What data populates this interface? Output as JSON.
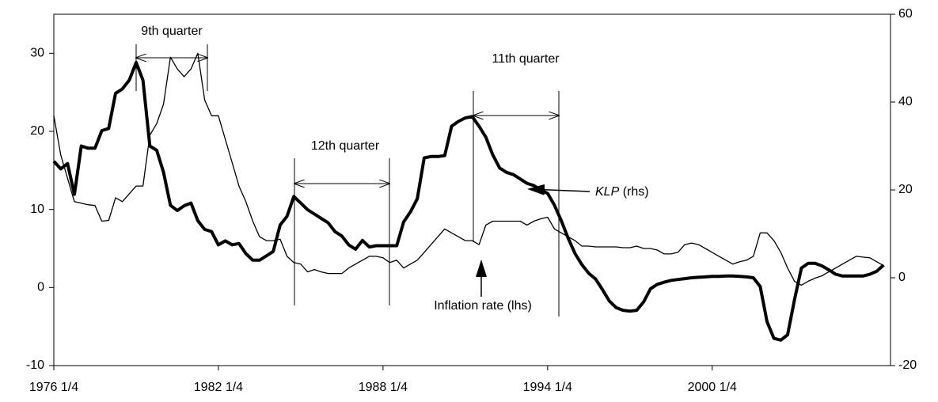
{
  "chart_data": {
    "type": "line",
    "x": [
      1976,
      1976.25,
      1976.5,
      1976.75,
      1977,
      1977.25,
      1977.5,
      1977.75,
      1978,
      1978.25,
      1978.5,
      1978.75,
      1979,
      1979.25,
      1979.5,
      1979.75,
      1980,
      1980.25,
      1980.5,
      1980.75,
      1981,
      1981.25,
      1981.5,
      1981.75,
      1982,
      1982.25,
      1982.5,
      1982.75,
      1983,
      1983.25,
      1983.5,
      1983.75,
      1984,
      1984.25,
      1984.5,
      1984.75,
      1985,
      1985.25,
      1985.5,
      1985.75,
      1986,
      1986.25,
      1986.5,
      1986.75,
      1987,
      1987.25,
      1987.5,
      1987.75,
      1988,
      1988.25,
      1988.5,
      1988.75,
      1989,
      1989.25,
      1989.5,
      1989.75,
      1990,
      1990.25,
      1990.5,
      1990.75,
      1991,
      1991.25,
      1991.5,
      1991.75,
      1992,
      1992.25,
      1992.5,
      1992.75,
      1993,
      1993.25,
      1993.5,
      1993.75,
      1994,
      1994.25,
      1994.5,
      1994.75,
      1995,
      1995.25,
      1995.5,
      1995.75,
      1996,
      1996.25,
      1996.5,
      1996.75,
      1997,
      1997.25,
      1997.5,
      1997.75,
      1998,
      1998.25,
      1998.5,
      1998.75,
      1999,
      1999.25,
      1999.5,
      1999.75,
      2000,
      2000.25,
      2000.5,
      2000.75,
      2001,
      2001.25,
      2001.5,
      2001.75,
      2002,
      2002.25,
      2002.5,
      2002.75,
      2003,
      2003.25,
      2003.5,
      2003.75,
      2004,
      2004.25,
      2004.5,
      2004.75,
      2005,
      2005.25,
      2005.5,
      2005.75,
      2006,
      2006.25
    ],
    "series": [
      {
        "name": "Inflation rate (lhs)",
        "color": "#000000",
        "width": 1.3,
        "axis": "y",
        "values": [
          22,
          17,
          14,
          11,
          10.8,
          10.6,
          10.5,
          8.5,
          8.6,
          11.5,
          11,
          12,
          13,
          13,
          19.5,
          21,
          23.5,
          29.5,
          28,
          27,
          28,
          30,
          24,
          22,
          22,
          19,
          16,
          13,
          11,
          8.5,
          6.5,
          6,
          6,
          6.2,
          4,
          3.2,
          3,
          2,
          2.3,
          2,
          1.8,
          1.8,
          1.8,
          2.5,
          3,
          3.5,
          4,
          4,
          3.8,
          3.2,
          3.5,
          2.5,
          3,
          3.5,
          4.5,
          5.5,
          6.5,
          7.5,
          7,
          6.5,
          6,
          6,
          5.5,
          8,
          8.5,
          8.5,
          8.5,
          8.5,
          8.5,
          8,
          8.5,
          8.8,
          9,
          7.5,
          7,
          6.5,
          6,
          5.3,
          5.3,
          5.2,
          5.2,
          5.2,
          5.2,
          5.1,
          5.1,
          5.3,
          5,
          5,
          4.8,
          4.3,
          4.3,
          4.5,
          5.5,
          5.7,
          5.5,
          5,
          4.5,
          4,
          3.5,
          3,
          3.3,
          3.5,
          4,
          7,
          7,
          6,
          4.5,
          2.5,
          0.8,
          0.3,
          0.8,
          1.2,
          1.5,
          2,
          2.5,
          3,
          3.5,
          4,
          3.9,
          3.8,
          3.3,
          2.8
        ]
      },
      {
        "name": "KLP",
        "color": "#000000",
        "width": 4,
        "axis": "y2",
        "values": [
          26.5,
          24.8,
          26,
          19,
          30,
          29.5,
          29.5,
          33.5,
          34,
          42,
          43,
          45,
          49,
          45,
          30,
          29,
          24,
          16.5,
          15.3,
          16.4,
          17,
          13,
          11,
          10.5,
          7.5,
          8.4,
          7.5,
          7.8,
          5.5,
          4,
          4,
          5,
          6,
          12,
          14,
          18.5,
          17,
          15.5,
          14.5,
          13.5,
          12.5,
          10.5,
          9.5,
          7.5,
          6.5,
          8.5,
          7,
          7.3,
          7.3,
          7.3,
          7.3,
          12.7,
          15,
          18,
          27.3,
          27.6,
          27.6,
          27.8,
          34.5,
          35.6,
          36.4,
          36.7,
          34.5,
          32,
          28,
          25,
          24,
          23.5,
          22.5,
          21.5,
          21,
          20,
          19.2,
          16.5,
          13,
          9,
          5.5,
          3,
          1,
          -0.3,
          -2.7,
          -5.3,
          -6.8,
          -7.4,
          -7.6,
          -7.4,
          -5.5,
          -2.5,
          -1.5,
          -1,
          -0.6,
          -0.4,
          -0.2,
          0,
          0.1,
          0.2,
          0.3,
          0.3,
          0.4,
          0.4,
          0.3,
          0.2,
          0,
          -2,
          -10,
          -13.8,
          -14.2,
          -13,
          -5,
          2.2,
          3.3,
          3.3,
          2.7,
          1.8,
          0.8,
          0.4,
          0.4,
          0.4,
          0.4,
          0.8,
          1.5,
          2.9
        ]
      }
    ],
    "xlim": [
      1976,
      2006.5
    ],
    "xticks": [
      {
        "value": 1976,
        "label": "1976 1/4"
      },
      {
        "value": 1982,
        "label": "1982 1/4"
      },
      {
        "value": 1988,
        "label": "1988 1/4"
      },
      {
        "value": 1994,
        "label": "1994 1/4"
      },
      {
        "value": 2000,
        "label": "2000 1/4"
      }
    ],
    "ylim": [
      -10,
      35
    ],
    "yticks": [
      -10,
      0,
      10,
      20,
      30
    ],
    "y2lim": [
      -20,
      60
    ],
    "y2ticks": [
      -20,
      0,
      20,
      40,
      60
    ],
    "annotations": {
      "q9": "9th quarter",
      "q12": "12th quarter",
      "q11": "11th quarter",
      "rhs": "(rhs)"
    }
  }
}
